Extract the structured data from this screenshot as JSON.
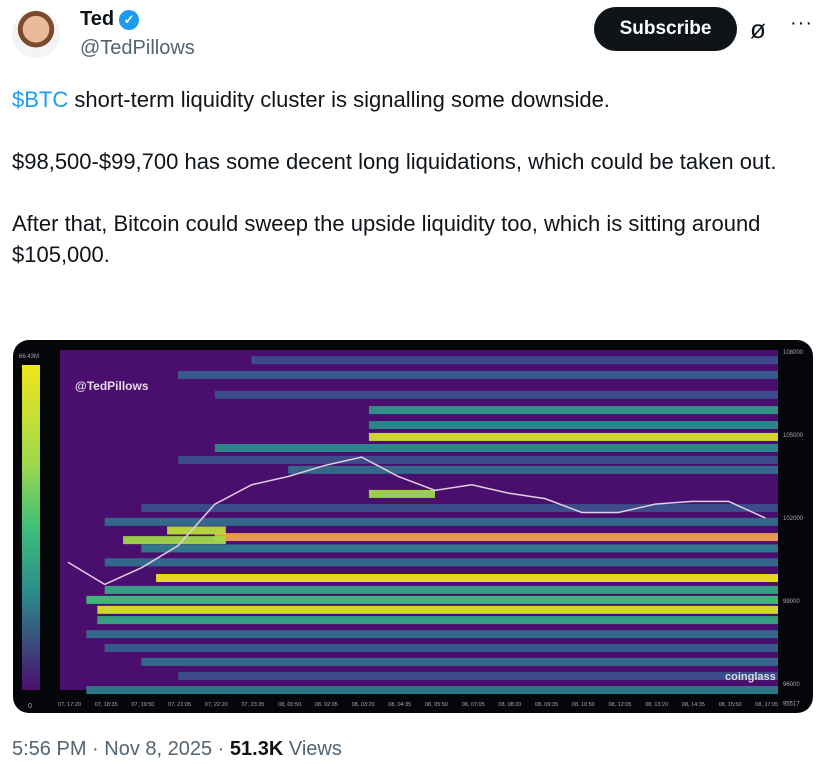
{
  "author": {
    "name": "Ted",
    "handle": "@TedPillows",
    "verified": true
  },
  "header": {
    "subscribe_label": "Subscribe",
    "grok_icon": "grok-icon",
    "more_icon": "more-icon"
  },
  "tweet": {
    "cashtag": "$BTC",
    "line1": " short-term liquidity cluster is signalling some downside.",
    "line2": "$98,500-$99,700 has some decent long liquidations, which could be taken out.",
    "line3": "After that, Bitcoin could sweep the upside liquidity too, which is sitting around $105,000."
  },
  "footer": {
    "time": "5:56 PM",
    "date": "Nov 8, 2025",
    "views_count": "51.3K",
    "views_label": " Views"
  },
  "colors": {
    "accent": "#1d9bf0",
    "heatmap_bg": "#4a0f6e",
    "price_line": "#e0d0e0"
  },
  "chart_data": {
    "type": "heatmap",
    "watermark": "@TedPillows",
    "logo": "coinglass",
    "colorbar": {
      "max_label": "66.43M",
      "min_label": "0"
    },
    "y_ticks": [
      "108000",
      "105000",
      "102000",
      "99000",
      "96000",
      "95517"
    ],
    "y_tick_values": [
      108000,
      105000,
      102000,
      99000,
      96000,
      95517
    ],
    "ylim": [
      95517,
      108300
    ],
    "x_ticks": [
      "07, 17:20",
      "07, 18:35",
      "07, 19:50",
      "07, 21:05",
      "07, 22:20",
      "07, 23:35",
      "08, 00:50",
      "08, 02:05",
      "08, 03:20",
      "08, 04:35",
      "08, 05:50",
      "08, 07:05",
      "08, 08:20",
      "08, 09:35",
      "08, 10:50",
      "08, 12:05",
      "08, 13:20",
      "08, 14:35",
      "08, 15:50",
      "08, 17:05"
    ],
    "bands": [
      {
        "price": 107700,
        "intensity": 0.3,
        "start": 5
      },
      {
        "price": 107170,
        "intensity": 0.35,
        "start": 3
      },
      {
        "price": 106450,
        "intensity": 0.3,
        "start": 4
      },
      {
        "price": 105900,
        "intensity": 0.55,
        "start": 8.2
      },
      {
        "price": 105360,
        "intensity": 0.5,
        "start": 8.2
      },
      {
        "price": 104930,
        "intensity": 0.95,
        "start": 8.2
      },
      {
        "price": 104530,
        "intensity": 0.5,
        "start": 4
      },
      {
        "price": 104100,
        "intensity": 0.3,
        "start": 3
      },
      {
        "price": 103740,
        "intensity": 0.4,
        "start": 6
      },
      {
        "price": 102870,
        "intensity": 0.85,
        "start": 8.2,
        "end": 10
      },
      {
        "price": 102360,
        "intensity": 0.3,
        "start": 2
      },
      {
        "price": 101860,
        "intensity": 0.4,
        "start": 1
      },
      {
        "price": 101310,
        "intensity": 0.9,
        "start": 4,
        "color": "#f0a050"
      },
      {
        "price": 100900,
        "intensity": 0.45,
        "start": 2
      },
      {
        "price": 100400,
        "intensity": 0.4,
        "start": 1
      },
      {
        "price": 99830,
        "intensity": 1.0,
        "start": 2.4
      },
      {
        "price": 99400,
        "intensity": 0.6,
        "start": 1
      },
      {
        "price": 99040,
        "intensity": 0.7,
        "start": 0.5
      },
      {
        "price": 98680,
        "intensity": 0.95,
        "start": 0.8
      },
      {
        "price": 98310,
        "intensity": 0.6,
        "start": 0.8
      },
      {
        "price": 97800,
        "intensity": 0.4,
        "start": 0.5
      },
      {
        "price": 97300,
        "intensity": 0.35,
        "start": 1
      },
      {
        "price": 96800,
        "intensity": 0.4,
        "start": 2
      },
      {
        "price": 96290,
        "intensity": 0.3,
        "start": 3
      },
      {
        "price": 95780,
        "intensity": 0.45,
        "start": 0.5
      },
      {
        "price": 101200,
        "intensity": 0.85,
        "start": 1.5,
        "end": 4.3
      },
      {
        "price": 101550,
        "intensity": 0.9,
        "start": 2.7,
        "end": 4.3
      }
    ],
    "price_series": [
      100400,
      99600,
      100200,
      101000,
      102500,
      103200,
      103500,
      103900,
      104200,
      103500,
      103000,
      103200,
      102900,
      102700,
      102200,
      102200,
      102500,
      102600,
      102600,
      102000
    ]
  }
}
